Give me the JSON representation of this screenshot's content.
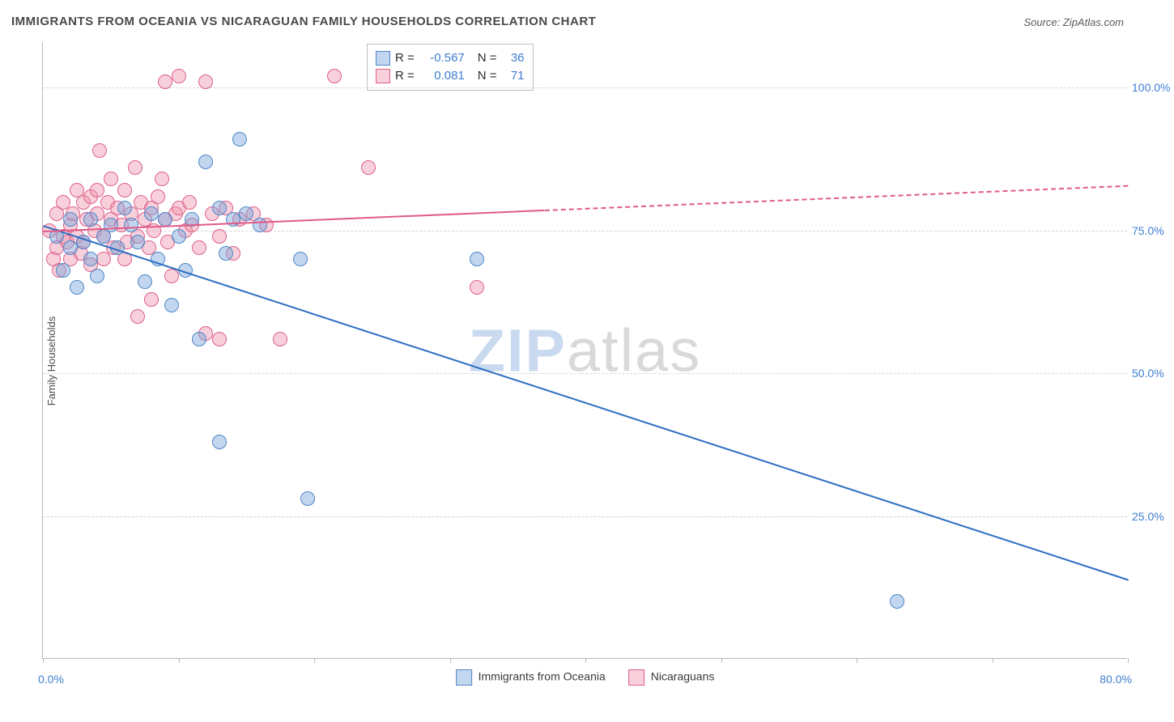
{
  "title": "IMMIGRANTS FROM OCEANIA VS NICARAGUAN FAMILY HOUSEHOLDS CORRELATION CHART",
  "source": "Source: ZipAtlas.com",
  "ylabel": "Family Households",
  "watermark_zip": "ZIP",
  "watermark_atlas": "atlas",
  "chart": {
    "type": "scatter",
    "background_color": "#ffffff",
    "grid_color": "#d6d6d6",
    "axis_color": "#b8b8b8",
    "text_color": "#4a4a4a",
    "value_color": "#3f7fd1",
    "xlim": [
      0,
      80
    ],
    "ylim": [
      0,
      108
    ],
    "xticks": [
      0,
      10,
      20,
      30,
      40,
      50,
      60,
      70,
      80
    ],
    "xlabels": {
      "0": "0.0%",
      "80": "80.0%"
    },
    "yticks": [
      25,
      50,
      75,
      100
    ],
    "ylabels": {
      "25": "25.0%",
      "50": "50.0%",
      "75": "75.0%",
      "100": "100.0%"
    },
    "marker_size": 18,
    "series": [
      {
        "id": "blue",
        "label": "Immigrants from Oceania",
        "fill": "rgba(120,165,220,0.45)",
        "stroke": "#4f87c7",
        "r_label": "R =",
        "r_value": "-0.567",
        "n_label": "N =",
        "n_value": "36",
        "trend": {
          "x1": 0,
          "y1": 76,
          "x2": 80,
          "y2": 14,
          "color": "#2f6fc2",
          "width": 2,
          "solid_to": 80
        },
        "points": [
          [
            1,
            74
          ],
          [
            1.5,
            68
          ],
          [
            2,
            72
          ],
          [
            2,
            77
          ],
          [
            2.5,
            65
          ],
          [
            3,
            73
          ],
          [
            3.5,
            70
          ],
          [
            3.5,
            77
          ],
          [
            4,
            67
          ],
          [
            4.5,
            74
          ],
          [
            5,
            76
          ],
          [
            5.5,
            72
          ],
          [
            6,
            79
          ],
          [
            6.5,
            76
          ],
          [
            7,
            73
          ],
          [
            7.5,
            66
          ],
          [
            8,
            78
          ],
          [
            8.5,
            70
          ],
          [
            9,
            77
          ],
          [
            9.5,
            62
          ],
          [
            10,
            74
          ],
          [
            10.5,
            68
          ],
          [
            11,
            77
          ],
          [
            11.5,
            56
          ],
          [
            12,
            87
          ],
          [
            13,
            79
          ],
          [
            13.5,
            71
          ],
          [
            14,
            77
          ],
          [
            14.5,
            91
          ],
          [
            15,
            78
          ],
          [
            16,
            76
          ],
          [
            19,
            70
          ],
          [
            19.5,
            28
          ],
          [
            13,
            38
          ],
          [
            32,
            70
          ],
          [
            63,
            10
          ]
        ]
      },
      {
        "id": "pink",
        "label": "Nicaraguans",
        "fill": "rgba(240,150,175,0.45)",
        "stroke": "#dd5f89",
        "r_label": "R =",
        "r_value": "0.081",
        "n_label": "N =",
        "n_value": "71",
        "trend": {
          "x1": 0,
          "y1": 75,
          "x2": 80,
          "y2": 83,
          "color": "#e05a87",
          "width": 2,
          "solid_to": 37
        },
        "points": [
          [
            0.5,
            75
          ],
          [
            0.8,
            70
          ],
          [
            1,
            78
          ],
          [
            1,
            72
          ],
          [
            1.2,
            68
          ],
          [
            1.5,
            80
          ],
          [
            1.5,
            74
          ],
          [
            1.8,
            73
          ],
          [
            2,
            76
          ],
          [
            2,
            70
          ],
          [
            2.2,
            78
          ],
          [
            2.5,
            82
          ],
          [
            2.5,
            74
          ],
          [
            2.8,
            71
          ],
          [
            3,
            80
          ],
          [
            3,
            73
          ],
          [
            3.2,
            77
          ],
          [
            3.5,
            81
          ],
          [
            3.5,
            69
          ],
          [
            3.8,
            75
          ],
          [
            4,
            78
          ],
          [
            4,
            82
          ],
          [
            4.2,
            89
          ],
          [
            4.5,
            74
          ],
          [
            4.5,
            70
          ],
          [
            4.8,
            80
          ],
          [
            5,
            77
          ],
          [
            5,
            84
          ],
          [
            5.2,
            72
          ],
          [
            5.5,
            79
          ],
          [
            5.8,
            76
          ],
          [
            6,
            82
          ],
          [
            6,
            70
          ],
          [
            6.2,
            73
          ],
          [
            6.5,
            78
          ],
          [
            6.8,
            86
          ],
          [
            7,
            74
          ],
          [
            7,
            60
          ],
          [
            7.2,
            80
          ],
          [
            7.5,
            77
          ],
          [
            7.8,
            72
          ],
          [
            8,
            79
          ],
          [
            8,
            63
          ],
          [
            8.2,
            75
          ],
          [
            8.5,
            81
          ],
          [
            8.8,
            84
          ],
          [
            9,
            77
          ],
          [
            9,
            101
          ],
          [
            9.2,
            73
          ],
          [
            9.5,
            67
          ],
          [
            9.8,
            78
          ],
          [
            10,
            102
          ],
          [
            10,
            79
          ],
          [
            10.5,
            75
          ],
          [
            10.8,
            80
          ],
          [
            11,
            76
          ],
          [
            11.5,
            72
          ],
          [
            12,
            101
          ],
          [
            12,
            57
          ],
          [
            12.5,
            78
          ],
          [
            13,
            74
          ],
          [
            13,
            56
          ],
          [
            13.5,
            79
          ],
          [
            14,
            71
          ],
          [
            14.5,
            77
          ],
          [
            15.5,
            78
          ],
          [
            16.5,
            76
          ],
          [
            17.5,
            56
          ],
          [
            21.5,
            102
          ],
          [
            24,
            86
          ],
          [
            32,
            65
          ]
        ]
      }
    ]
  }
}
